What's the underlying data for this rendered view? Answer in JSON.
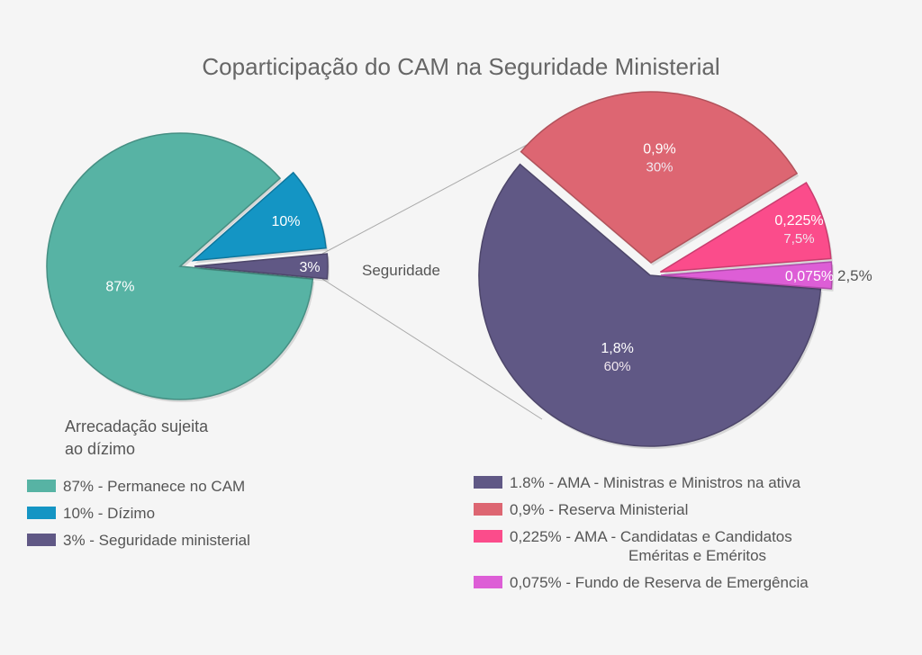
{
  "chart_data": [
    {
      "type": "pie",
      "title": "Coparticipação do CAM na Seguridade Ministerial",
      "caption_line1": "Arrecadação sujeita",
      "caption_line2": "ao dízimo",
      "slices": [
        {
          "label": "87%",
          "value": 87,
          "color": "#57b3a4",
          "legend": "87% - Permanece no CAM"
        },
        {
          "label": "10%",
          "value": 10,
          "color": "#1495c4",
          "legend": "10% - Dízimo"
        },
        {
          "label": "3%",
          "value": 3,
          "color": "#605885",
          "legend": "3% - Seguridade ministerial"
        }
      ]
    },
    {
      "type": "pie",
      "title": "Seguridade",
      "slices": [
        {
          "label": "1,8%",
          "sublabel": "60%",
          "value": 60,
          "color": "#605885",
          "legend": "1.8% - AMA - Ministras e Ministros na ativa"
        },
        {
          "label": "0,9%",
          "sublabel": "30%",
          "value": 30,
          "color": "#dd6672",
          "legend": "0,9% - Reserva Ministerial"
        },
        {
          "label": "0,225%",
          "sublabel": "7,5%",
          "value": 7.5,
          "color": "#fb4c8b",
          "legend_line1": "0,225% - AMA - Candidatas e Candidatos",
          "legend_line2": "Eméritas e Eméritos"
        },
        {
          "label": "0,075%",
          "sublabel": "2,5%",
          "value": 2.5,
          "color": "#dd5ed6",
          "legend": "0,075% - Fundo de Reserva de Emergência"
        }
      ]
    }
  ]
}
